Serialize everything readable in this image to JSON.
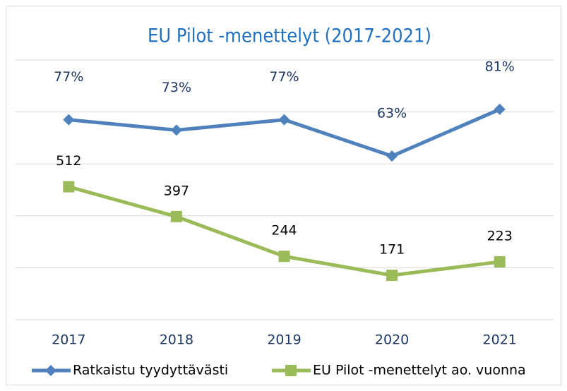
{
  "chart_data": {
    "type": "line",
    "title": "EU Pilot -menettelyt (2017-2021)",
    "categories": [
      "2017",
      "2018",
      "2019",
      "2020",
      "2021"
    ],
    "series": [
      {
        "name": "Ratkaistu tyydyttävästi",
        "color": "#4f81bd",
        "values": [
          77,
          73,
          77,
          63,
          81
        ],
        "value_labels": [
          "77%",
          "73%",
          "77%",
          "63%",
          "81%"
        ]
      },
      {
        "name": "EU Pilot -menettelyt ao. vuonna",
        "color": "#9bbb59",
        "axis": "y2",
        "values": [
          512,
          397,
          244,
          171,
          223
        ]
      }
    ],
    "ylim": [
      0,
      100
    ],
    "yticks": [
      0,
      20,
      40,
      60,
      80,
      100
    ],
    "y2lim": [
      0,
      1000
    ],
    "grid": true,
    "legend": "bottom"
  }
}
